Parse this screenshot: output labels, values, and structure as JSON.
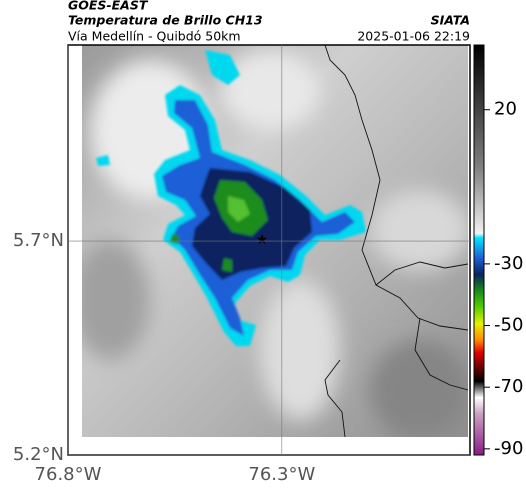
{
  "header": {
    "title": "GOES-EAST",
    "subtitle": "Temperatura de Brillo CH13",
    "route": "Vía Medellín - Quibdó 50km",
    "source": "SIATA",
    "datetime": "2025-01-06 22:19"
  },
  "map": {
    "latlim": [
      5.2,
      6.158
    ],
    "lonlim": [
      -76.8,
      -75.86
    ],
    "latticks": [
      {
        "value": 5.2,
        "label": "5.2°N"
      },
      {
        "value": 5.7,
        "label": "5.7°N"
      }
    ],
    "lonticks": [
      {
        "value": -76.8,
        "label": "76.8°W"
      },
      {
        "value": -76.3,
        "label": "76.3°W"
      }
    ]
  },
  "colorbar": {
    "lim": [
      -92,
      41
    ],
    "ticks": [
      20,
      -30,
      -50,
      -70,
      -90
    ]
  }
}
